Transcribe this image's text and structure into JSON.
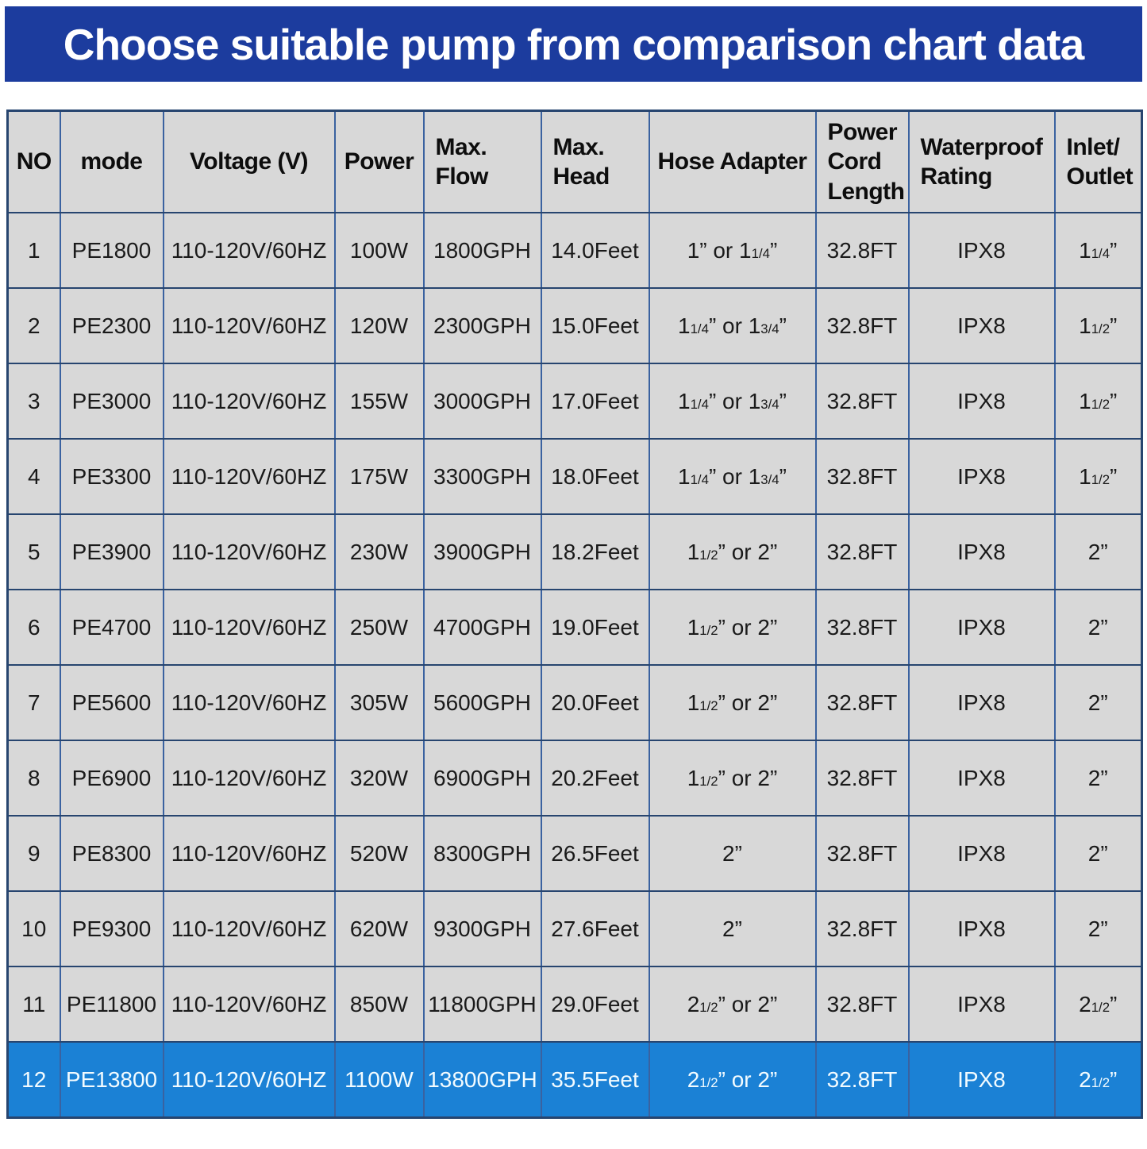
{
  "page": {
    "title": "Choose suitable pump from comparison chart data"
  },
  "colors": {
    "banner_bg": "#1c3c9e",
    "banner_text": "#ffffff",
    "cell_bg": "#d8d8d8",
    "grid_line_vertical": "#3a62a0",
    "grid_line_horizontal": "#27456f",
    "highlight_row_bg": "#1b81d5",
    "highlight_row_text": "#f2fbff",
    "body_text": "#1a1a1a"
  },
  "table": {
    "columns": [
      {
        "key": "no",
        "label": "NO"
      },
      {
        "key": "mode",
        "label": "mode"
      },
      {
        "key": "voltage",
        "label": "Voltage (V)"
      },
      {
        "key": "power",
        "label": "Power"
      },
      {
        "key": "flow",
        "label": "Max.\nFlow"
      },
      {
        "key": "head",
        "label": "Max.\nHead"
      },
      {
        "key": "hose",
        "label": "Hose Adapter"
      },
      {
        "key": "cord",
        "label": "Power\nCord\nLength"
      },
      {
        "key": "waterproof",
        "label": "Waterproof\nRating"
      },
      {
        "key": "inlet",
        "label": "Inlet/\nOutlet"
      }
    ],
    "rows": [
      {
        "no": "1",
        "mode": "PE1800",
        "voltage": "110-120V/60HZ",
        "power": "100W",
        "flow": "1800GPH",
        "head": "14.0Feet",
        "hose": "1” or 11/4”",
        "cord": "32.8FT",
        "waterproof": "IPX8",
        "inlet": "11/4”",
        "highlighted": false
      },
      {
        "no": "2",
        "mode": "PE2300",
        "voltage": "110-120V/60HZ",
        "power": "120W",
        "flow": "2300GPH",
        "head": "15.0Feet",
        "hose": "11/4” or 13/4”",
        "cord": "32.8FT",
        "waterproof": "IPX8",
        "inlet": "11/2”",
        "highlighted": false
      },
      {
        "no": "3",
        "mode": "PE3000",
        "voltage": "110-120V/60HZ",
        "power": "155W",
        "flow": "3000GPH",
        "head": "17.0Feet",
        "hose": "11/4” or 13/4”",
        "cord": "32.8FT",
        "waterproof": "IPX8",
        "inlet": "11/2”",
        "highlighted": false
      },
      {
        "no": "4",
        "mode": "PE3300",
        "voltage": "110-120V/60HZ",
        "power": "175W",
        "flow": "3300GPH",
        "head": "18.0Feet",
        "hose": "11/4” or 13/4”",
        "cord": "32.8FT",
        "waterproof": "IPX8",
        "inlet": "11/2”",
        "highlighted": false
      },
      {
        "no": "5",
        "mode": "PE3900",
        "voltage": "110-120V/60HZ",
        "power": "230W",
        "flow": "3900GPH",
        "head": "18.2Feet",
        "hose": "11/2” or 2”",
        "cord": "32.8FT",
        "waterproof": "IPX8",
        "inlet": "2”",
        "highlighted": false
      },
      {
        "no": "6",
        "mode": "PE4700",
        "voltage": "110-120V/60HZ",
        "power": "250W",
        "flow": "4700GPH",
        "head": "19.0Feet",
        "hose": "11/2” or 2”",
        "cord": "32.8FT",
        "waterproof": "IPX8",
        "inlet": "2”",
        "highlighted": false
      },
      {
        "no": "7",
        "mode": "PE5600",
        "voltage": "110-120V/60HZ",
        "power": "305W",
        "flow": "5600GPH",
        "head": "20.0Feet",
        "hose": "11/2” or 2”",
        "cord": "32.8FT",
        "waterproof": "IPX8",
        "inlet": "2”",
        "highlighted": false
      },
      {
        "no": "8",
        "mode": "PE6900",
        "voltage": "110-120V/60HZ",
        "power": "320W",
        "flow": "6900GPH",
        "head": "20.2Feet",
        "hose": "11/2” or 2”",
        "cord": "32.8FT",
        "waterproof": "IPX8",
        "inlet": "2”",
        "highlighted": false
      },
      {
        "no": "9",
        "mode": "PE8300",
        "voltage": "110-120V/60HZ",
        "power": "520W",
        "flow": "8300GPH",
        "head": "26.5Feet",
        "hose": "2”",
        "cord": "32.8FT",
        "waterproof": "IPX8",
        "inlet": "2”",
        "highlighted": false
      },
      {
        "no": "10",
        "mode": "PE9300",
        "voltage": "110-120V/60HZ",
        "power": "620W",
        "flow": "9300GPH",
        "head": "27.6Feet",
        "hose": "2”",
        "cord": "32.8FT",
        "waterproof": "IPX8",
        "inlet": "2”",
        "highlighted": false
      },
      {
        "no": "11",
        "mode": "PE11800",
        "voltage": "110-120V/60HZ",
        "power": "850W",
        "flow": "11800GPH",
        "head": "29.0Feet",
        "hose": "21/2” or 2”",
        "cord": "32.8FT",
        "waterproof": "IPX8",
        "inlet": "21/2”",
        "highlighted": false
      },
      {
        "no": "12",
        "mode": "PE13800",
        "voltage": "110-120V/60HZ",
        "power": "1100W",
        "flow": "13800GPH",
        "head": "35.5Feet",
        "hose": "21/2” or 2”",
        "cord": "32.8FT",
        "waterproof": "IPX8",
        "inlet": "21/2”",
        "highlighted": true
      }
    ]
  },
  "chart_data": {
    "type": "table",
    "title": "Choose suitable pump from comparison chart data",
    "columns": [
      "NO",
      "mode",
      "Voltage (V)",
      "Power",
      "Max. Flow",
      "Max. Head",
      "Hose Adapter",
      "Power Cord Length",
      "Waterproof Rating",
      "Inlet/Outlet"
    ],
    "rows": [
      [
        "1",
        "PE1800",
        "110-120V/60HZ",
        "100W",
        "1800GPH",
        "14.0Feet",
        "1” or 11/4”",
        "32.8FT",
        "IPX8",
        "11/4”"
      ],
      [
        "2",
        "PE2300",
        "110-120V/60HZ",
        "120W",
        "2300GPH",
        "15.0Feet",
        "11/4” or 13/4”",
        "32.8FT",
        "IPX8",
        "11/2”"
      ],
      [
        "3",
        "PE3000",
        "110-120V/60HZ",
        "155W",
        "3000GPH",
        "17.0Feet",
        "11/4” or 13/4”",
        "32.8FT",
        "IPX8",
        "11/2”"
      ],
      [
        "4",
        "PE3300",
        "110-120V/60HZ",
        "175W",
        "3300GPH",
        "18.0Feet",
        "11/4” or 13/4”",
        "32.8FT",
        "IPX8",
        "11/2”"
      ],
      [
        "5",
        "PE3900",
        "110-120V/60HZ",
        "230W",
        "3900GPH",
        "18.2Feet",
        "11/2” or 2”",
        "32.8FT",
        "IPX8",
        "2”"
      ],
      [
        "6",
        "PE4700",
        "110-120V/60HZ",
        "250W",
        "4700GPH",
        "19.0Feet",
        "11/2” or 2”",
        "32.8FT",
        "IPX8",
        "2”"
      ],
      [
        "7",
        "PE5600",
        "110-120V/60HZ",
        "305W",
        "5600GPH",
        "20.0Feet",
        "11/2” or 2”",
        "32.8FT",
        "IPX8",
        "2”"
      ],
      [
        "8",
        "PE6900",
        "110-120V/60HZ",
        "320W",
        "6900GPH",
        "20.2Feet",
        "11/2” or 2”",
        "32.8FT",
        "IPX8",
        "2”"
      ],
      [
        "9",
        "PE8300",
        "110-120V/60HZ",
        "520W",
        "8300GPH",
        "26.5Feet",
        "2”",
        "32.8FT",
        "IPX8",
        "2”"
      ],
      [
        "10",
        "PE9300",
        "110-120V/60HZ",
        "620W",
        "9300GPH",
        "27.6Feet",
        "2”",
        "32.8FT",
        "IPX8",
        "2”"
      ],
      [
        "11",
        "PE11800",
        "110-120V/60HZ",
        "850W",
        "11800GPH",
        "29.0Feet",
        "21/2” or 2”",
        "32.8FT",
        "IPX8",
        "21/2”"
      ],
      [
        "12",
        "PE13800",
        "110-120V/60HZ",
        "1100W",
        "13800GPH",
        "35.5Feet",
        "21/2” or 2”",
        "32.8FT",
        "IPX8",
        "21/2”"
      ]
    ],
    "highlighted_row_index": 11,
    "notes": "Row 12 (PE13800) is highlighted with blue background and white text; all cells gray otherwise; blue grid lines"
  }
}
